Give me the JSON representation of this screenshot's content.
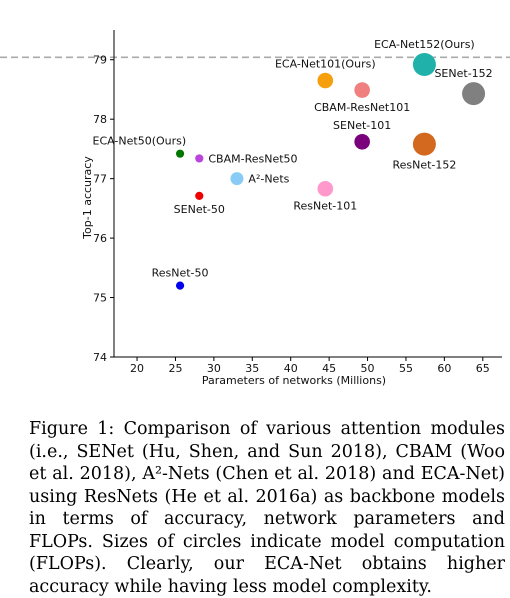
{
  "chart_data": {
    "type": "scatter",
    "xlabel": "Parameters of networks (Millions)",
    "ylabel": "Top-1 accuracy",
    "xlim": [
      17,
      67.5
    ],
    "ylim": [
      74,
      79.5
    ],
    "xticks": [
      "20",
      "25",
      "30",
      "35",
      "40",
      "45",
      "50",
      "55",
      "60",
      "65"
    ],
    "yticks": [
      "74",
      "75",
      "76",
      "77",
      "78",
      "79"
    ],
    "reference_line": {
      "y": 79.04,
      "style": "dashed",
      "color": "#aaaaaa"
    },
    "points": [
      {
        "label": "ResNet-50",
        "x": 25.6,
        "y": 75.2,
        "size": 4.1,
        "color": "#0000ee",
        "label_pos": "above"
      },
      {
        "label": "SENet-50",
        "x": 28.1,
        "y": 76.71,
        "size": 4.1,
        "color": "#ee0000",
        "label_pos": "below"
      },
      {
        "label": "ECA-Net50(Ours)",
        "x": 25.6,
        "y": 77.42,
        "size": 4.1,
        "color": "#007700",
        "label_pos": "above-left"
      },
      {
        "label": "CBAM-ResNet50",
        "x": 28.1,
        "y": 77.34,
        "size": 4.1,
        "color": "#bb44dd",
        "label_pos": "right"
      },
      {
        "label": "A²-Nets",
        "x": 33.0,
        "y": 77.0,
        "size": 6.5,
        "color": "#88ccf5",
        "label_pos": "right"
      },
      {
        "label": "ResNet-101",
        "x": 44.5,
        "y": 76.83,
        "size": 7.8,
        "color": "#ff99cc",
        "label_pos": "below"
      },
      {
        "label": "SENet-101",
        "x": 49.3,
        "y": 77.62,
        "size": 7.8,
        "color": "#7b007b",
        "label_pos": "above"
      },
      {
        "label": "CBAM-ResNet101",
        "x": 49.3,
        "y": 78.49,
        "size": 7.8,
        "color": "#f08080",
        "label_pos": "below"
      },
      {
        "label": "ECA-Net101(Ours)",
        "x": 44.5,
        "y": 78.65,
        "size": 7.8,
        "color": "#f5a00a",
        "label_pos": "above"
      },
      {
        "label": "ResNet-152",
        "x": 57.4,
        "y": 77.58,
        "size": 11.5,
        "color": "#d2691e",
        "label_pos": "below"
      },
      {
        "label": "SENet-152",
        "x": 63.8,
        "y": 78.43,
        "size": 11.5,
        "color": "#808080",
        "label_pos": "above-right"
      },
      {
        "label": "ECA-Net152(Ours)",
        "x": 57.4,
        "y": 78.92,
        "size": 11.5,
        "color": "#20b2aa",
        "label_pos": "above"
      }
    ]
  },
  "caption": "Figure 1: Comparison of various attention modules (i.e., SENet (Hu, Shen, and Sun 2018), CBAM (Woo et al. 2018), A²-Nets (Chen et al. 2018) and ECA-Net) using ResNets (He et al. 2016a) as backbone models in terms of accuracy, network parameters and FLOPs. Sizes of circles indicate model computation (FLOPs). Clearly, our ECA-Net obtains higher accuracy while having less model complexity."
}
